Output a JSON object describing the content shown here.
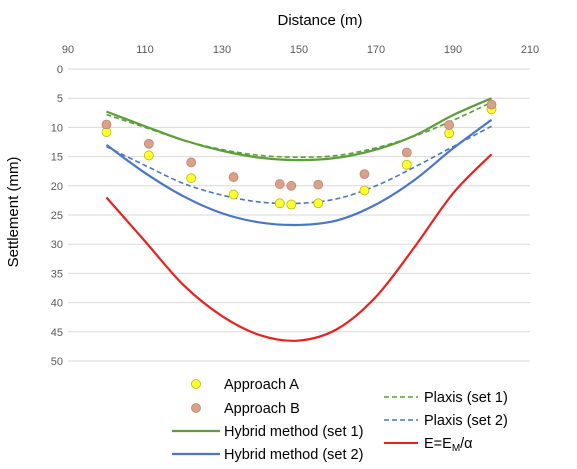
{
  "chart_data": {
    "type": "line",
    "xlabel": "Distance (m)",
    "ylabel": "Settlement (mm)",
    "xlim": [
      90,
      210
    ],
    "ylim": [
      0,
      50
    ],
    "y_inverted": true,
    "x_axis_position": "top",
    "x_ticks": [
      90,
      110,
      130,
      150,
      170,
      190,
      210
    ],
    "y_ticks": [
      0,
      5,
      10,
      15,
      20,
      25,
      30,
      35,
      40,
      45,
      50
    ],
    "grid": "horizontal",
    "legend_position": "bottom",
    "series": [
      {
        "name": "Approach A",
        "kind": "scatter",
        "color": "#ffff33",
        "edge": "#b8b800",
        "points": [
          [
            100,
            10.8
          ],
          [
            111,
            14.8
          ],
          [
            122,
            18.7
          ],
          [
            133,
            21.5
          ],
          [
            145,
            23.0
          ],
          [
            148,
            23.2
          ],
          [
            155,
            23.0
          ],
          [
            167,
            20.8
          ],
          [
            178,
            16.4
          ],
          [
            189,
            11.0
          ],
          [
            200,
            6.9
          ]
        ]
      },
      {
        "name": "Approach B",
        "kind": "scatter",
        "color": "#d9a08a",
        "edge": "#c08870",
        "points": [
          [
            100,
            9.5
          ],
          [
            111,
            12.8
          ],
          [
            122,
            16.0
          ],
          [
            133,
            18.5
          ],
          [
            145,
            19.7
          ],
          [
            148,
            20.0
          ],
          [
            155,
            19.8
          ],
          [
            167,
            18.0
          ],
          [
            178,
            14.3
          ],
          [
            189,
            9.6
          ],
          [
            200,
            6.1
          ]
        ]
      },
      {
        "name": "Hybrid method (set 1)",
        "kind": "line",
        "style": "solid",
        "color": "#5b9e3a",
        "points": [
          [
            100,
            7.3
          ],
          [
            110,
            9.8
          ],
          [
            120,
            12.2
          ],
          [
            130,
            14.0
          ],
          [
            140,
            15.2
          ],
          [
            150,
            15.6
          ],
          [
            160,
            15.2
          ],
          [
            170,
            13.8
          ],
          [
            180,
            11.4
          ],
          [
            190,
            7.9
          ],
          [
            200,
            5.0
          ]
        ]
      },
      {
        "name": "Hybrid method (set 2)",
        "kind": "line",
        "style": "solid",
        "color": "#4a76c9",
        "points": [
          [
            100,
            13.0
          ],
          [
            110,
            17.8
          ],
          [
            120,
            21.8
          ],
          [
            130,
            24.7
          ],
          [
            140,
            26.3
          ],
          [
            150,
            26.7
          ],
          [
            160,
            25.9
          ],
          [
            170,
            23.2
          ],
          [
            180,
            19.0
          ],
          [
            190,
            13.6
          ],
          [
            200,
            8.7
          ]
        ]
      },
      {
        "name": "Plaxis (set 1)",
        "kind": "line",
        "style": "dashed",
        "color": "#5b9e3a",
        "points": [
          [
            100,
            7.8
          ],
          [
            110,
            10.0
          ],
          [
            120,
            12.2
          ],
          [
            130,
            13.8
          ],
          [
            140,
            14.8
          ],
          [
            150,
            15.1
          ],
          [
            160,
            14.8
          ],
          [
            170,
            13.5
          ],
          [
            180,
            11.5
          ],
          [
            190,
            8.8
          ],
          [
            200,
            5.7
          ]
        ]
      },
      {
        "name": "Plaxis (set 2)",
        "kind": "line",
        "style": "dashed",
        "color": "#4a76c9",
        "points": [
          [
            100,
            13.3
          ],
          [
            110,
            16.5
          ],
          [
            120,
            19.6
          ],
          [
            130,
            21.6
          ],
          [
            140,
            22.8
          ],
          [
            150,
            23.0
          ],
          [
            160,
            22.2
          ],
          [
            170,
            20.0
          ],
          [
            180,
            16.8
          ],
          [
            190,
            13.3
          ],
          [
            200,
            9.8
          ]
        ]
      },
      {
        "name_main": "E=E",
        "name_sub": "M",
        "name_tail": "/α",
        "kind": "line",
        "style": "solid",
        "color": "#e8221f",
        "points": [
          [
            100,
            22.0
          ],
          [
            110,
            29.5
          ],
          [
            120,
            37.0
          ],
          [
            130,
            42.3
          ],
          [
            140,
            45.6
          ],
          [
            150,
            46.5
          ],
          [
            160,
            44.5
          ],
          [
            170,
            39.0
          ],
          [
            180,
            30.5
          ],
          [
            190,
            21.3
          ],
          [
            200,
            14.6
          ]
        ]
      }
    ]
  }
}
